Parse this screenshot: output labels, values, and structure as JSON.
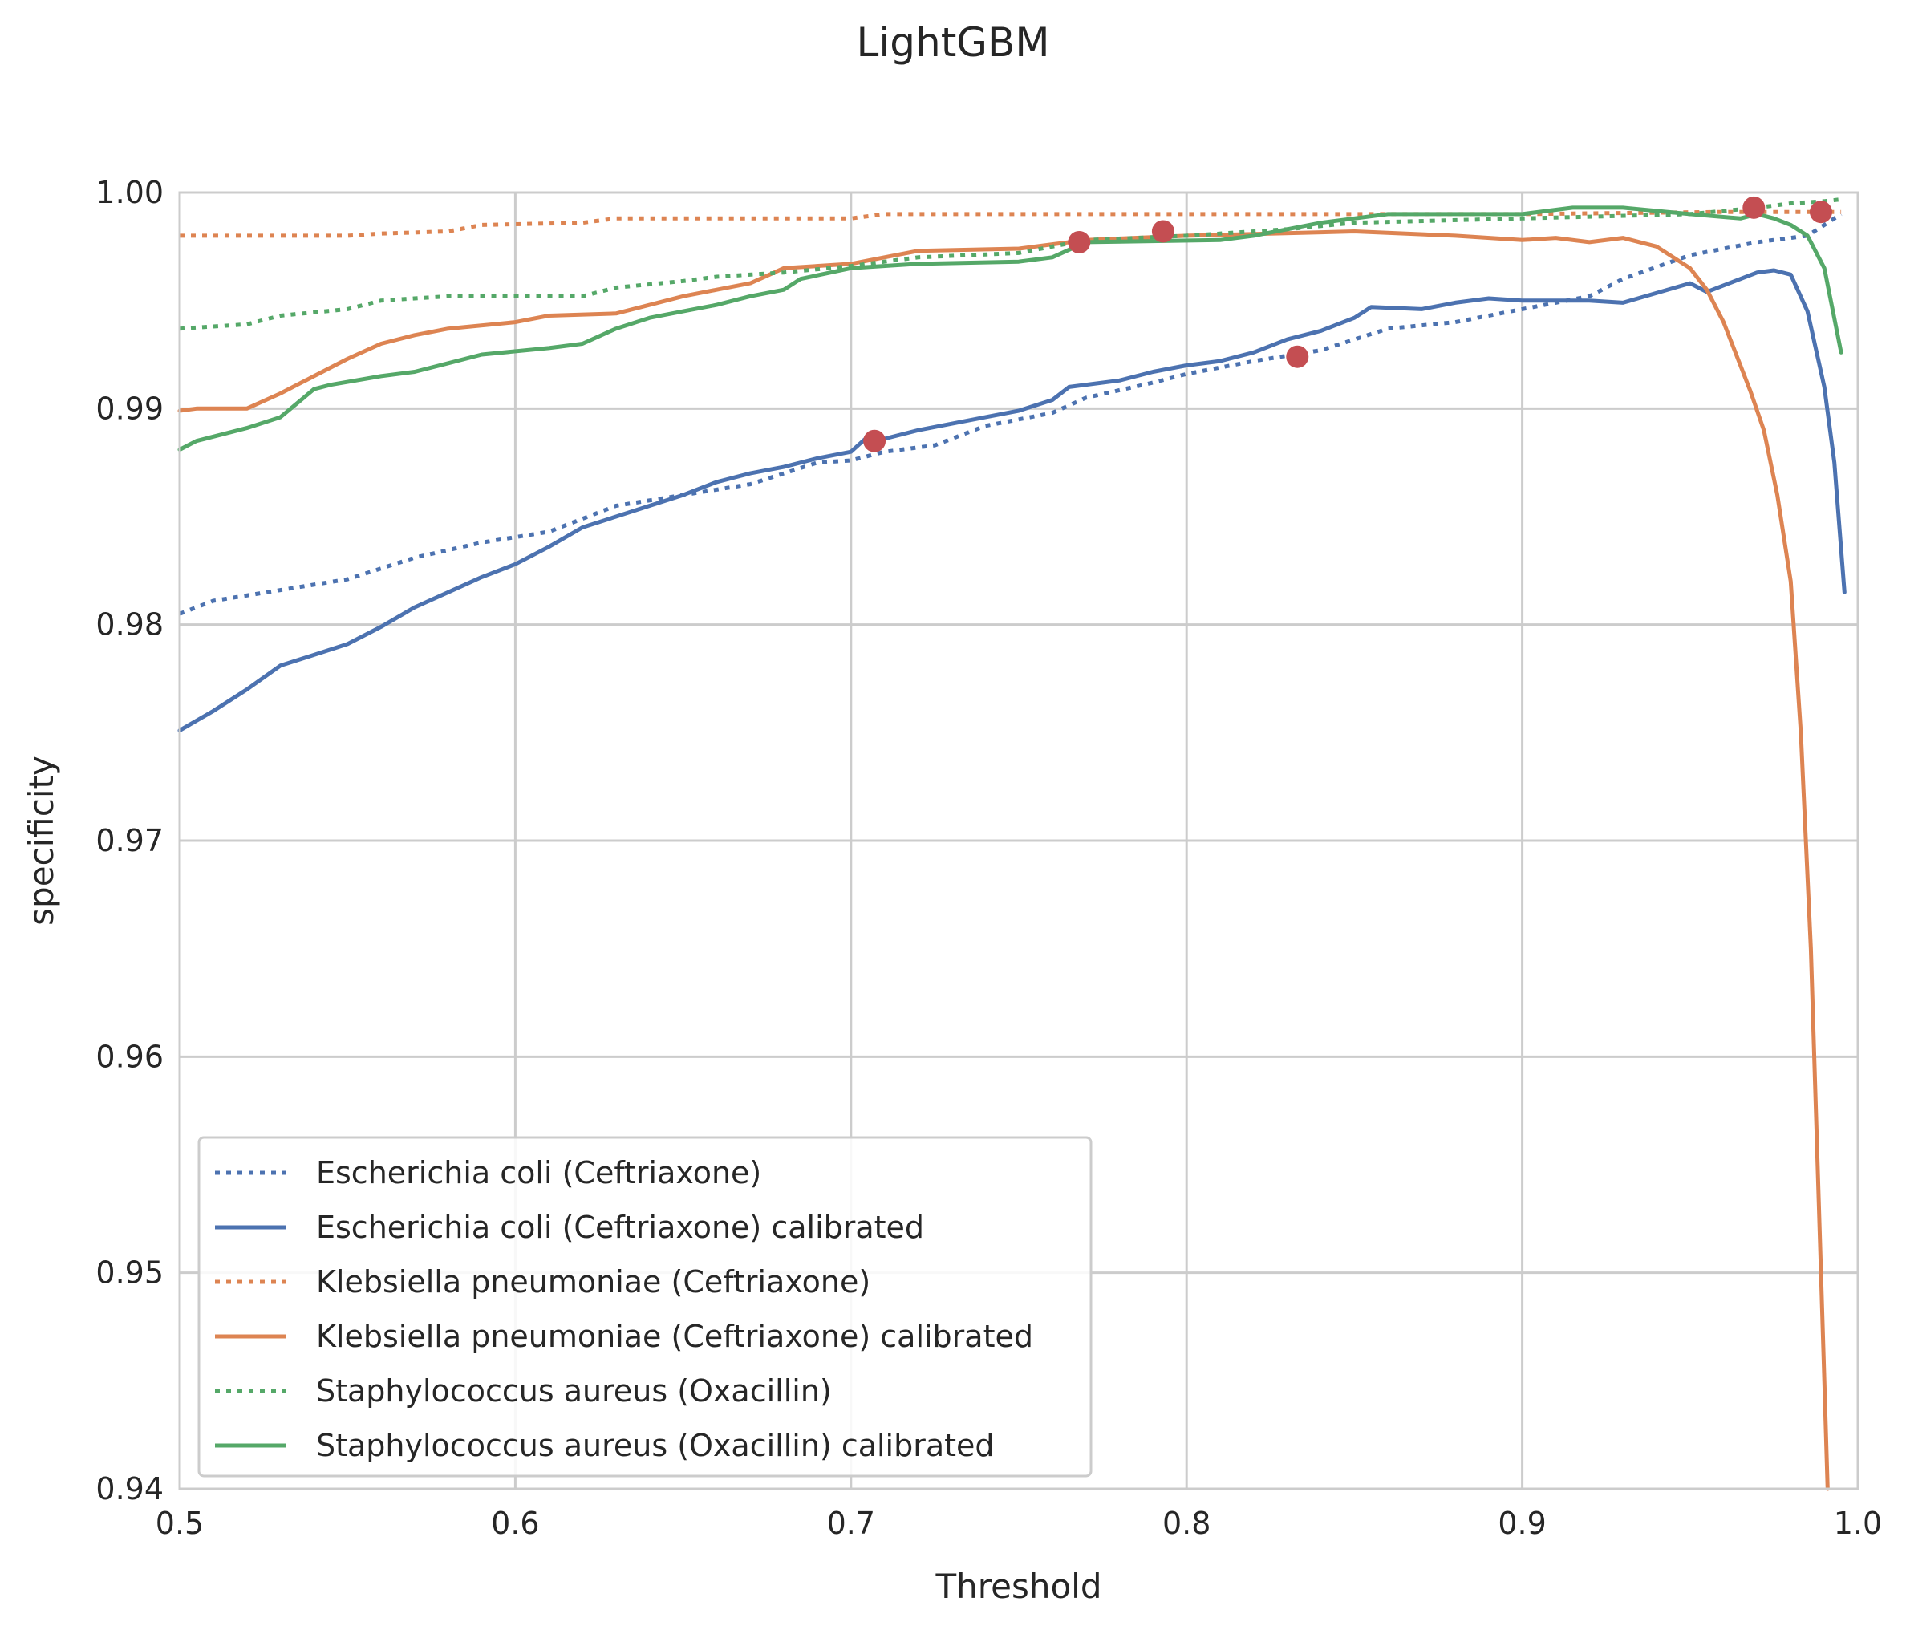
{
  "chart_data": {
    "type": "line",
    "title": "LightGBM",
    "xlabel": "Threshold",
    "ylabel": "specificity",
    "xlim": [
      0.5,
      1.0
    ],
    "ylim": [
      0.94,
      1.0
    ],
    "xticks": [
      "0.5",
      "0.6",
      "0.7",
      "0.8",
      "0.9",
      "1.0"
    ],
    "yticks": [
      "0.94",
      "0.95",
      "0.96",
      "0.97",
      "0.98",
      "0.99",
      "1.00"
    ],
    "grid": true,
    "legend_position": "lower-left",
    "series": [
      {
        "name": "Escherichia coli (Ceftriaxone)",
        "color": "#4c72b0",
        "style": "dotted",
        "points": [
          [
            0.5,
            0.9805
          ],
          [
            0.51,
            0.9811
          ],
          [
            0.53,
            0.9816
          ],
          [
            0.55,
            0.9821
          ],
          [
            0.57,
            0.9831
          ],
          [
            0.59,
            0.9838
          ],
          [
            0.61,
            0.9843
          ],
          [
            0.63,
            0.9855
          ],
          [
            0.65,
            0.986
          ],
          [
            0.67,
            0.9865
          ],
          [
            0.69,
            0.9875
          ],
          [
            0.7,
            0.9876
          ],
          [
            0.71,
            0.988
          ],
          [
            0.725,
            0.9883
          ],
          [
            0.74,
            0.9892
          ],
          [
            0.76,
            0.9898
          ],
          [
            0.77,
            0.9905
          ],
          [
            0.79,
            0.9912
          ],
          [
            0.8,
            0.9916
          ],
          [
            0.82,
            0.9922
          ],
          [
            0.84,
            0.9927
          ],
          [
            0.86,
            0.9937
          ],
          [
            0.88,
            0.994
          ],
          [
            0.9,
            0.9946
          ],
          [
            0.92,
            0.9952
          ],
          [
            0.93,
            0.996
          ],
          [
            0.95,
            0.9971
          ],
          [
            0.97,
            0.9977
          ],
          [
            0.985,
            0.998
          ],
          [
            0.995,
            0.999
          ]
        ]
      },
      {
        "name": "Escherichia coli (Ceftriaxone) calibrated",
        "color": "#4c72b0",
        "style": "solid",
        "points": [
          [
            0.5,
            0.9751
          ],
          [
            0.51,
            0.976
          ],
          [
            0.52,
            0.977
          ],
          [
            0.53,
            0.9781
          ],
          [
            0.54,
            0.9786
          ],
          [
            0.55,
            0.9791
          ],
          [
            0.56,
            0.9799
          ],
          [
            0.57,
            0.9808
          ],
          [
            0.58,
            0.9815
          ],
          [
            0.59,
            0.9822
          ],
          [
            0.6,
            0.9828
          ],
          [
            0.61,
            0.9836
          ],
          [
            0.62,
            0.9845
          ],
          [
            0.63,
            0.985
          ],
          [
            0.64,
            0.9855
          ],
          [
            0.65,
            0.986
          ],
          [
            0.66,
            0.9866
          ],
          [
            0.67,
            0.987
          ],
          [
            0.68,
            0.9873
          ],
          [
            0.69,
            0.9877
          ],
          [
            0.7,
            0.988
          ],
          [
            0.705,
            0.9887
          ],
          [
            0.71,
            0.9886
          ],
          [
            0.72,
            0.989
          ],
          [
            0.73,
            0.9893
          ],
          [
            0.74,
            0.9896
          ],
          [
            0.75,
            0.9899
          ],
          [
            0.76,
            0.9904
          ],
          [
            0.765,
            0.991
          ],
          [
            0.78,
            0.9913
          ],
          [
            0.79,
            0.9917
          ],
          [
            0.8,
            0.992
          ],
          [
            0.81,
            0.9922
          ],
          [
            0.82,
            0.9926
          ],
          [
            0.83,
            0.9932
          ],
          [
            0.84,
            0.9936
          ],
          [
            0.85,
            0.9942
          ],
          [
            0.855,
            0.9947
          ],
          [
            0.87,
            0.9946
          ],
          [
            0.88,
            0.9949
          ],
          [
            0.89,
            0.9951
          ],
          [
            0.9,
            0.995
          ],
          [
            0.92,
            0.995
          ],
          [
            0.93,
            0.9949
          ],
          [
            0.95,
            0.9958
          ],
          [
            0.955,
            0.9954
          ],
          [
            0.96,
            0.9957
          ],
          [
            0.97,
            0.9963
          ],
          [
            0.975,
            0.9964
          ],
          [
            0.98,
            0.9962
          ],
          [
            0.985,
            0.9945
          ],
          [
            0.99,
            0.991
          ],
          [
            0.993,
            0.9875
          ],
          [
            0.996,
            0.9815
          ]
        ]
      },
      {
        "name": "Klebsiella pneumoniae (Ceftriaxone)",
        "color": "#dd8452",
        "style": "dotted",
        "points": [
          [
            0.5,
            0.998
          ],
          [
            0.55,
            0.998
          ],
          [
            0.56,
            0.9981
          ],
          [
            0.58,
            0.9982
          ],
          [
            0.59,
            0.9985
          ],
          [
            0.62,
            0.9986
          ],
          [
            0.63,
            0.9988
          ],
          [
            0.7,
            0.9988
          ],
          [
            0.71,
            0.999
          ],
          [
            0.85,
            0.999
          ],
          [
            0.9,
            0.999
          ],
          [
            0.96,
            0.9991
          ],
          [
            0.995,
            0.9991
          ]
        ]
      },
      {
        "name": "Klebsiella pneumoniae (Ceftriaxone) calibrated",
        "color": "#dd8452",
        "style": "solid",
        "points": [
          [
            0.5,
            0.9899
          ],
          [
            0.505,
            0.99
          ],
          [
            0.52,
            0.99
          ],
          [
            0.53,
            0.9907
          ],
          [
            0.54,
            0.9915
          ],
          [
            0.55,
            0.9923
          ],
          [
            0.56,
            0.993
          ],
          [
            0.57,
            0.9934
          ],
          [
            0.58,
            0.9937
          ],
          [
            0.6,
            0.994
          ],
          [
            0.61,
            0.9943
          ],
          [
            0.63,
            0.9944
          ],
          [
            0.64,
            0.9948
          ],
          [
            0.65,
            0.9952
          ],
          [
            0.66,
            0.9955
          ],
          [
            0.67,
            0.9958
          ],
          [
            0.68,
            0.9965
          ],
          [
            0.7,
            0.9967
          ],
          [
            0.71,
            0.997
          ],
          [
            0.72,
            0.9973
          ],
          [
            0.75,
            0.9974
          ],
          [
            0.76,
            0.9976
          ],
          [
            0.77,
            0.9978
          ],
          [
            0.8,
            0.998
          ],
          [
            0.85,
            0.9982
          ],
          [
            0.88,
            0.998
          ],
          [
            0.9,
            0.9978
          ],
          [
            0.91,
            0.9979
          ],
          [
            0.92,
            0.9977
          ],
          [
            0.93,
            0.9979
          ],
          [
            0.94,
            0.9975
          ],
          [
            0.95,
            0.9965
          ],
          [
            0.955,
            0.9955
          ],
          [
            0.96,
            0.994
          ],
          [
            0.965,
            0.992
          ],
          [
            0.968,
            0.9908
          ],
          [
            0.972,
            0.989
          ],
          [
            0.976,
            0.986
          ],
          [
            0.98,
            0.982
          ],
          [
            0.983,
            0.975
          ],
          [
            0.986,
            0.965
          ],
          [
            0.988,
            0.955
          ],
          [
            0.99,
            0.945
          ],
          [
            0.991,
            0.94
          ]
        ]
      },
      {
        "name": "Staphylococcus aureus (Oxacillin)",
        "color": "#55a868",
        "style": "dotted",
        "points": [
          [
            0.5,
            0.9937
          ],
          [
            0.52,
            0.9939
          ],
          [
            0.53,
            0.9943
          ],
          [
            0.55,
            0.9946
          ],
          [
            0.56,
            0.995
          ],
          [
            0.58,
            0.9952
          ],
          [
            0.62,
            0.9952
          ],
          [
            0.63,
            0.9956
          ],
          [
            0.65,
            0.9959
          ],
          [
            0.66,
            0.9961
          ],
          [
            0.68,
            0.9963
          ],
          [
            0.7,
            0.9966
          ],
          [
            0.72,
            0.997
          ],
          [
            0.75,
            0.9972
          ],
          [
            0.77,
            0.9978
          ],
          [
            0.8,
            0.998
          ],
          [
            0.83,
            0.9983
          ],
          [
            0.85,
            0.9986
          ],
          [
            0.9,
            0.9988
          ],
          [
            0.95,
            0.999
          ],
          [
            0.97,
            0.9993
          ],
          [
            0.98,
            0.9995
          ],
          [
            0.99,
            0.9996
          ],
          [
            0.996,
            0.9997
          ]
        ]
      },
      {
        "name": "Staphylococcus aureus (Oxacillin) calibrated",
        "color": "#55a868",
        "style": "solid",
        "points": [
          [
            0.5,
            0.9881
          ],
          [
            0.505,
            0.9885
          ],
          [
            0.52,
            0.9891
          ],
          [
            0.53,
            0.9896
          ],
          [
            0.54,
            0.9909
          ],
          [
            0.545,
            0.9911
          ],
          [
            0.56,
            0.9915
          ],
          [
            0.57,
            0.9917
          ],
          [
            0.58,
            0.9921
          ],
          [
            0.59,
            0.9925
          ],
          [
            0.61,
            0.9928
          ],
          [
            0.62,
            0.993
          ],
          [
            0.63,
            0.9937
          ],
          [
            0.64,
            0.9942
          ],
          [
            0.65,
            0.9945
          ],
          [
            0.66,
            0.9948
          ],
          [
            0.67,
            0.9952
          ],
          [
            0.68,
            0.9955
          ],
          [
            0.685,
            0.996
          ],
          [
            0.7,
            0.9965
          ],
          [
            0.72,
            0.9967
          ],
          [
            0.75,
            0.9968
          ],
          [
            0.76,
            0.997
          ],
          [
            0.77,
            0.9977
          ],
          [
            0.81,
            0.9978
          ],
          [
            0.82,
            0.998
          ],
          [
            0.83,
            0.9983
          ],
          [
            0.84,
            0.9986
          ],
          [
            0.85,
            0.9988
          ],
          [
            0.86,
            0.999
          ],
          [
            0.9,
            0.999
          ],
          [
            0.915,
            0.9993
          ],
          [
            0.93,
            0.9993
          ],
          [
            0.95,
            0.999
          ],
          [
            0.965,
            0.9988
          ],
          [
            0.97,
            0.999
          ],
          [
            0.975,
            0.9988
          ],
          [
            0.98,
            0.9985
          ],
          [
            0.985,
            0.998
          ],
          [
            0.99,
            0.9965
          ],
          [
            0.995,
            0.9926
          ]
        ]
      }
    ],
    "markers": {
      "color": "#c44e52",
      "points": [
        [
          0.707,
          0.9885
        ],
        [
          0.768,
          0.9977
        ],
        [
          0.793,
          0.9982
        ],
        [
          0.833,
          0.9924
        ],
        [
          0.969,
          0.9993
        ],
        [
          0.989,
          0.9991
        ]
      ]
    }
  }
}
